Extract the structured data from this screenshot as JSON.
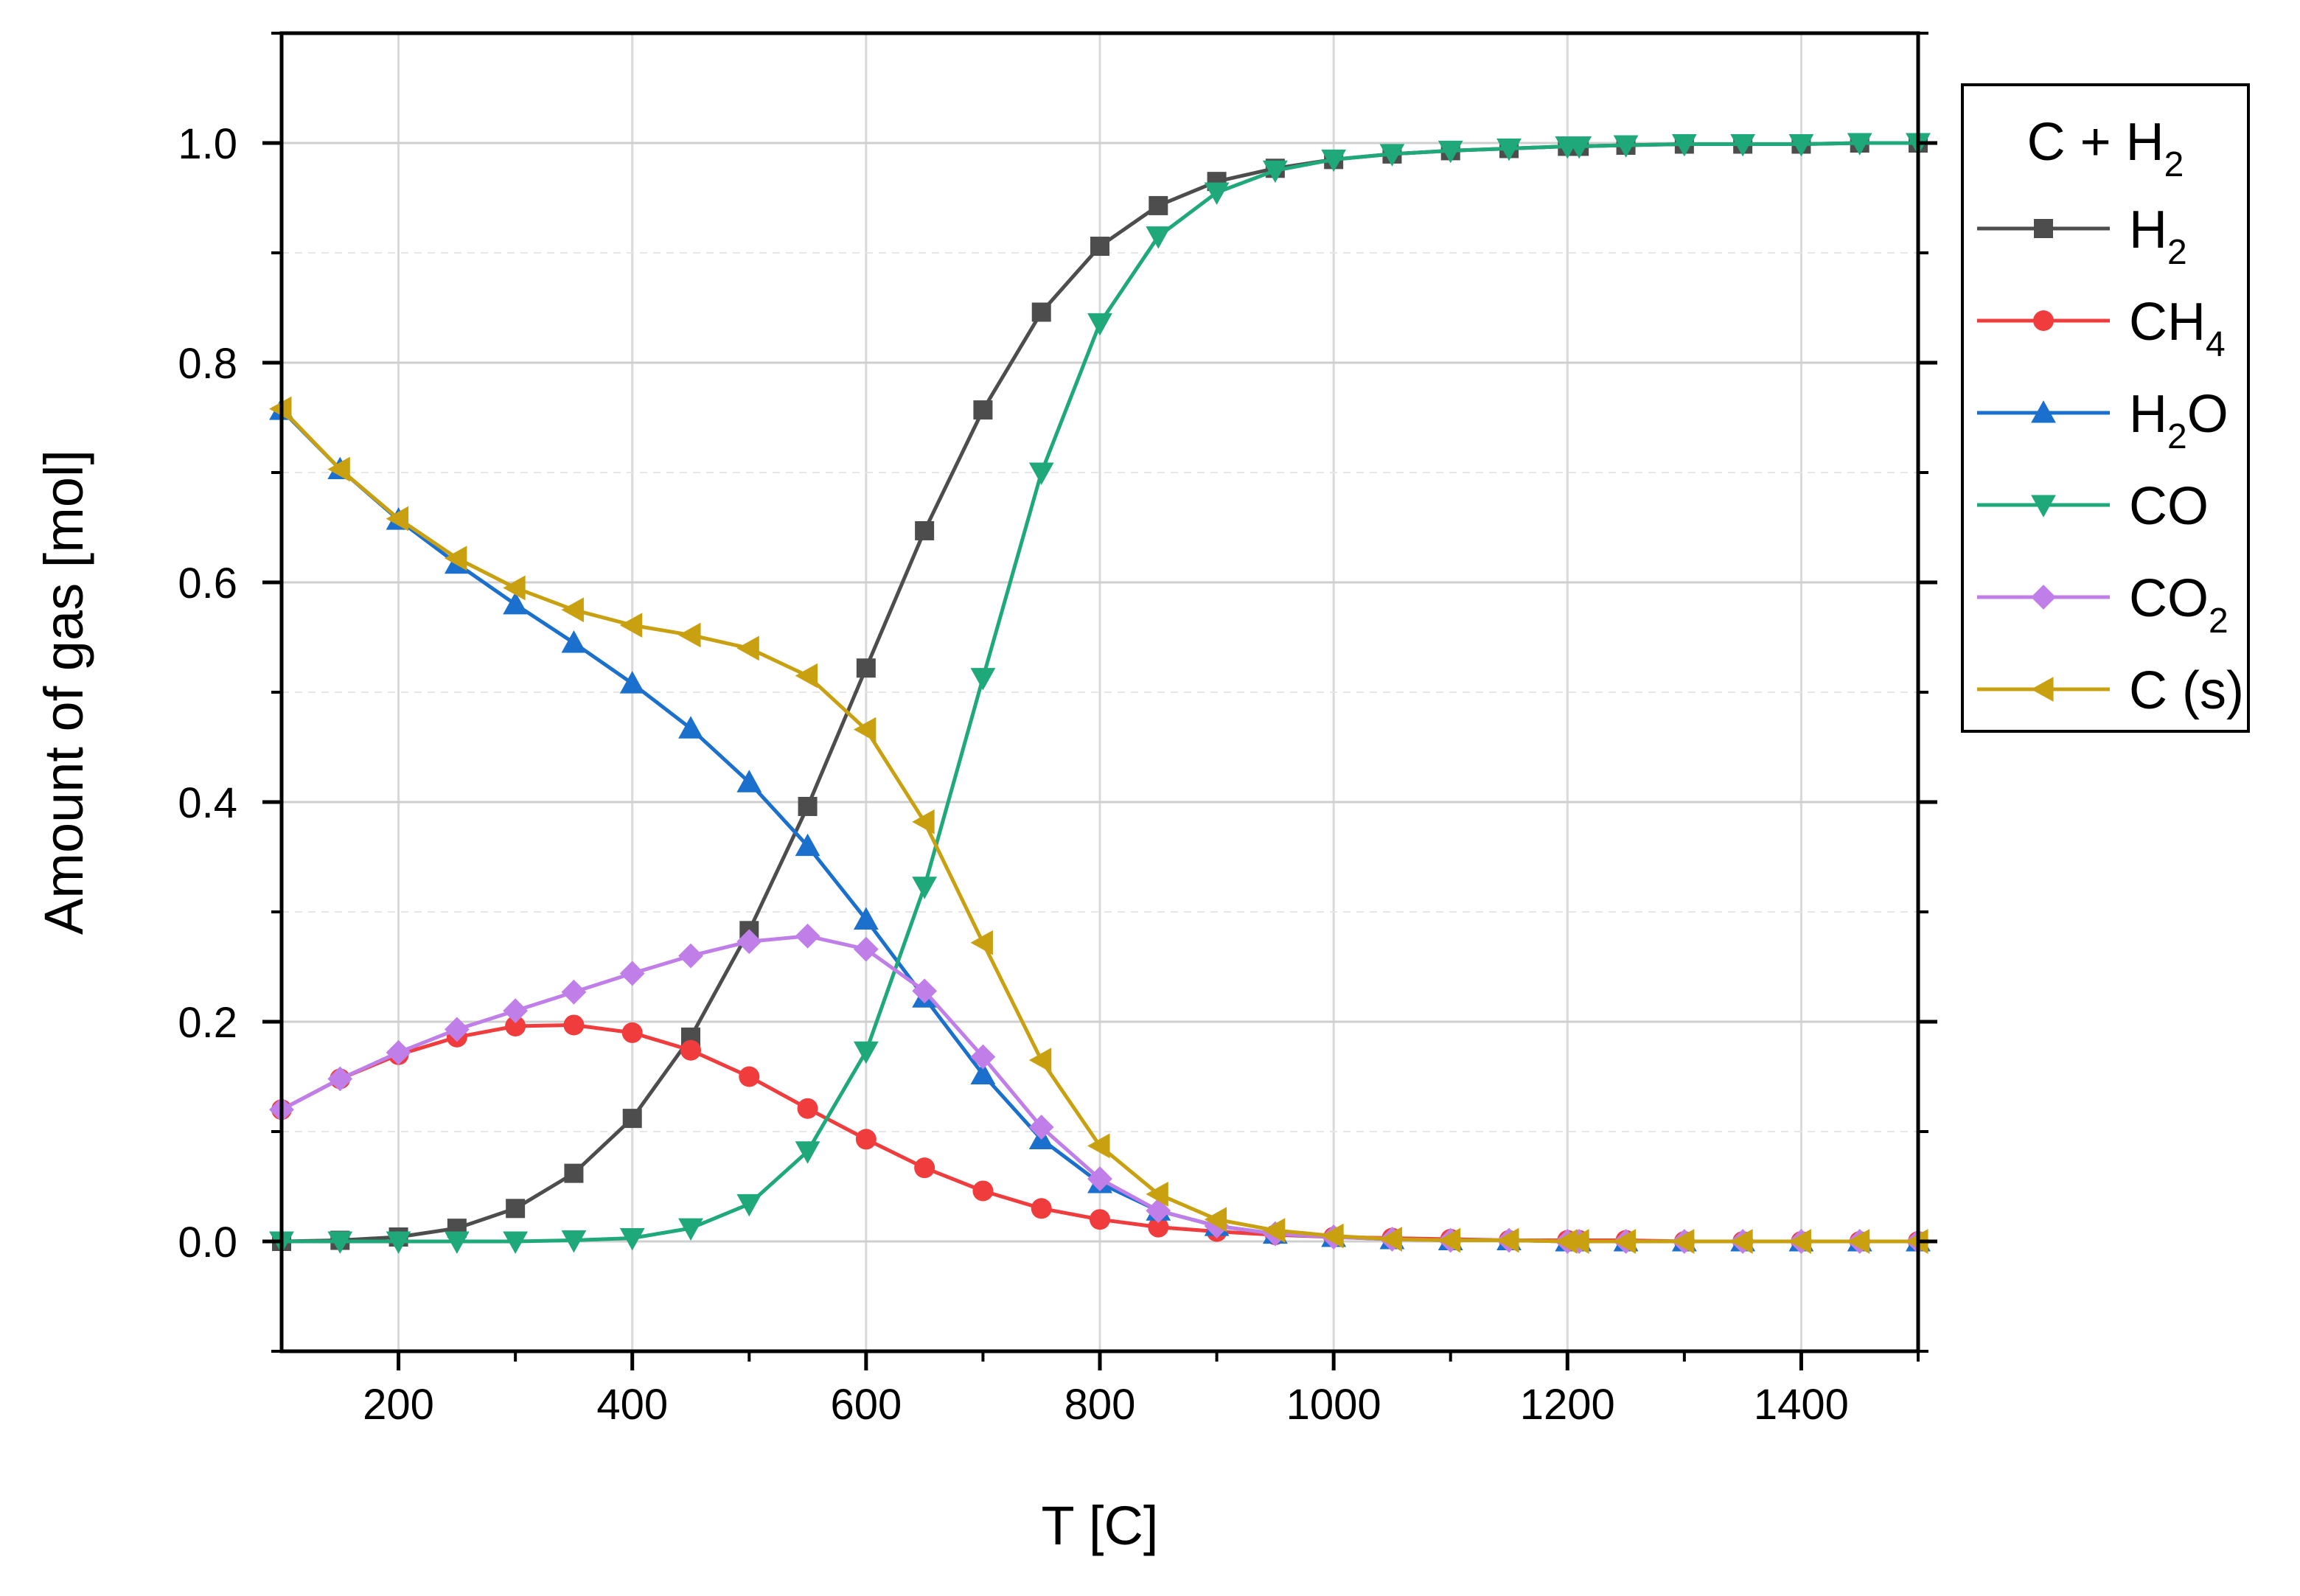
{
  "chart_data": {
    "type": "line",
    "title": "",
    "xlabel": "T [C]",
    "ylabel": "Amount of gas [mol]",
    "xlim": [
      100,
      1500
    ],
    "ylim": [
      -0.1,
      1.1
    ],
    "grid": true,
    "legend_position": "right-outside",
    "x_ticks": [
      200,
      400,
      600,
      800,
      1000,
      1200,
      1400
    ],
    "x_tick_labels": [
      "200",
      "400",
      "600",
      "800",
      "1000",
      "1200",
      "1400"
    ],
    "y_ticks": [
      0.0,
      0.2,
      0.4,
      0.6,
      0.8,
      1.0
    ],
    "y_tick_labels": [
      "0.0",
      "0.2",
      "0.4",
      "0.6",
      "0.8",
      "1.0"
    ],
    "legend_title": {
      "base": "C + H",
      "sub": "2"
    },
    "x": [
      100,
      150,
      200,
      250,
      300,
      350,
      400,
      450,
      500,
      550,
      600,
      650,
      700,
      750,
      800,
      850,
      900,
      950,
      1000,
      1050,
      1100,
      1150,
      1200,
      1210,
      1250,
      1300,
      1350,
      1400,
      1450,
      1500
    ],
    "series": [
      {
        "name": "H2",
        "label_base": "H",
        "label_sub": "2",
        "label_suffix": "",
        "color": "#4d4d4d",
        "marker": "square",
        "values": [
          0.0,
          0.001,
          0.004,
          0.012,
          0.03,
          0.062,
          0.112,
          0.186,
          0.283,
          0.396,
          0.522,
          0.647,
          0.757,
          0.846,
          0.906,
          0.943,
          0.965,
          0.977,
          0.985,
          0.99,
          0.993,
          0.995,
          0.997,
          0.997,
          0.998,
          0.999,
          0.999,
          0.999,
          1.0,
          1.0
        ]
      },
      {
        "name": "CH4",
        "label_base": "CH",
        "label_sub": "4",
        "label_suffix": "",
        "color": "#f03c3c",
        "marker": "circle",
        "values": [
          0.12,
          0.148,
          0.17,
          0.186,
          0.196,
          0.197,
          0.19,
          0.174,
          0.15,
          0.121,
          0.093,
          0.067,
          0.046,
          0.03,
          0.02,
          0.013,
          0.009,
          0.006,
          0.004,
          0.003,
          0.002,
          0.001,
          0.001,
          0.001,
          0.001,
          0.0,
          0.0,
          0.0,
          0.0,
          0.0
        ]
      },
      {
        "name": "H2O",
        "label_base": "H",
        "label_sub": "2",
        "label_suffix": "O",
        "color": "#1a70cc",
        "marker": "triangle-up",
        "values": [
          0.757,
          0.703,
          0.657,
          0.617,
          0.58,
          0.545,
          0.508,
          0.467,
          0.418,
          0.36,
          0.293,
          0.222,
          0.152,
          0.093,
          0.053,
          0.028,
          0.014,
          0.007,
          0.004,
          0.002,
          0.001,
          0.001,
          0.0,
          0.0,
          0.0,
          0.0,
          0.0,
          0.0,
          0.0,
          0.0
        ]
      },
      {
        "name": "CO",
        "label_base": "CO",
        "label_sub": "",
        "label_suffix": "",
        "color": "#1fa87a",
        "marker": "triangle-down",
        "values": [
          0.0,
          0.0,
          0.0,
          0.0,
          0.0,
          0.001,
          0.003,
          0.012,
          0.034,
          0.082,
          0.173,
          0.323,
          0.513,
          0.7,
          0.836,
          0.915,
          0.955,
          0.975,
          0.985,
          0.99,
          0.993,
          0.995,
          0.997,
          0.997,
          0.998,
          0.999,
          0.999,
          0.999,
          1.0,
          1.0
        ]
      },
      {
        "name": "CO2",
        "label_base": "CO",
        "label_sub": "2",
        "label_suffix": "",
        "color": "#c07ee8",
        "marker": "diamond",
        "values": [
          0.12,
          0.148,
          0.172,
          0.193,
          0.21,
          0.227,
          0.244,
          0.26,
          0.273,
          0.278,
          0.266,
          0.228,
          0.168,
          0.104,
          0.057,
          0.028,
          0.014,
          0.007,
          0.004,
          0.002,
          0.001,
          0.001,
          0.0,
          0.0,
          0.0,
          0.0,
          0.0,
          0.0,
          0.0,
          0.0
        ]
      },
      {
        "name": "C (s)",
        "label_base": "C (s)",
        "label_sub": "",
        "label_suffix": "",
        "color": "#c9a010",
        "marker": "triangle-left",
        "values": [
          0.758,
          0.703,
          0.658,
          0.622,
          0.595,
          0.575,
          0.561,
          0.552,
          0.54,
          0.515,
          0.466,
          0.382,
          0.272,
          0.165,
          0.087,
          0.043,
          0.02,
          0.01,
          0.005,
          0.002,
          0.001,
          0.001,
          0.0,
          0.0,
          0.0,
          0.0,
          0.0,
          0.0,
          0.0,
          0.0
        ]
      }
    ]
  }
}
